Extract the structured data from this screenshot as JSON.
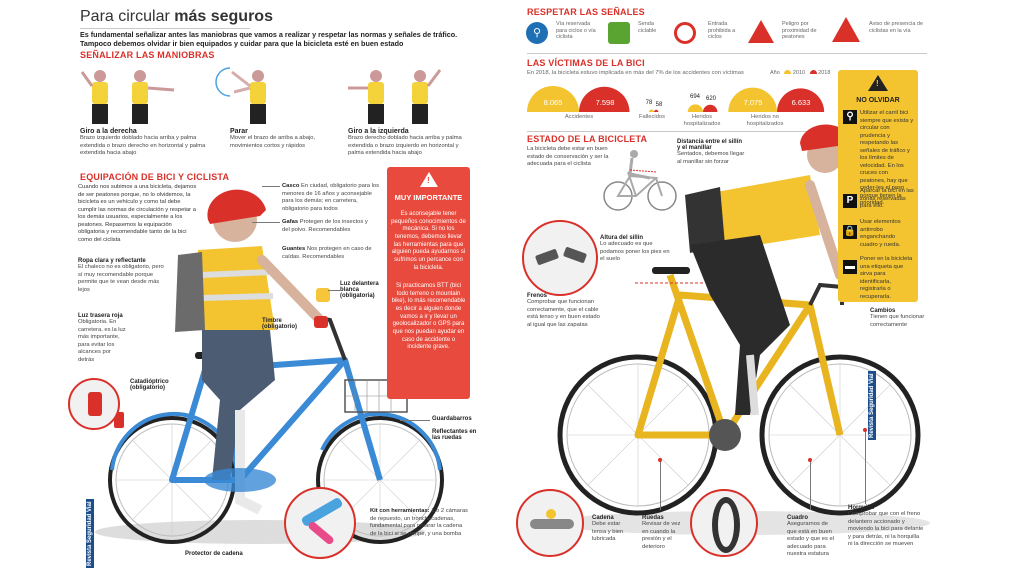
{
  "left": {
    "title_light": "Para circular",
    "title_bold": "más seguros",
    "intro": "Es fundamental señalizar antes las maniobras que vamos a realizar y respetar las normas y señales de tráfico. Tampoco debemos olvidar ir bien equipados y cuidar para que la bicicleta  esté en buen estado",
    "signal_title": "SEÑALIZAR LAS MANIOBRAS",
    "maneuvers": [
      {
        "title": "Giro a la derecha",
        "text": "Brazo izquierdo doblado hacia arriba y palma extendida o brazo derecho en horizontal y palma extendida hacia abajo"
      },
      {
        "title": "Parar",
        "text": "Mover el brazo de arriba a abajo, movimientos cortos y rápidos"
      },
      {
        "title": "Giro a la izquierda",
        "text": "Brazo derecho doblado hacia arriba y palma extendida o brazo izquierdo en horizontal y palma extendida hacia abajo"
      }
    ],
    "equip_title": "EQUIPACIÓN DE BICI Y CICLISTA",
    "equip_text": "Cuando nos subimos a una bicicleta, dejamos de ser peatones porque, no lo olvidemos, la bicicleta es un vehículo y  como tal debe cumplir las normas de circulación  y respetar a los demás usuarios, especialmente a los peatones. Repasemos la equipación obligatoria y recomendable tanto de la bici como del ciclista",
    "labels": {
      "casco_t": "Casco",
      "casco": "En ciudad, obligatorio para los menores de 16 años  y aconsejable para los demás; en carretera, obligatorio para todos",
      "gafas_t": "Gafas",
      "gafas": "Protegen de los insectos y del polvo. Recomendables",
      "guantes_t": "Guantes",
      "guantes": "Nos protegen en caso de caídas. Recomendables",
      "ropa_t": "Ropa clara y reflectante",
      "ropa": "El chaleco no es obligatorio, pero sí muy recomendable porque permite que te vean desde más lejos",
      "luzdel_t": "Luz delantera blanca (obligatoria)",
      "timbre_t": "Timbre (obligatorio)",
      "luztras_t": "Luz trasera roja",
      "luztras": "Obligatoria. En carretera, es la luz más  importante, para evitar los alcances por detrás",
      "cata_t": "Catadióptrico (obligatorio)",
      "guarda_t": "Guardabarros",
      "reflec_t": "Reflectantes en las ruedas",
      "kit_t": "Kit con herramientas:",
      "kit": " 1 o 2 cámaras de repuesto, un tronchacadenas, fundamental para reparar la cadena de la bici si se rompe, y una bomba",
      "protector_t": "Protector de cadena"
    },
    "warning": {
      "title": "MUY IMPORTANTE",
      "p1": "Es aconsejable tener pequeños conocimientos de mecánica. Si no los tenemos, debemos llevar las herramientas para que alguien pueda ayudarnos si sufrimos un percance con la bicicleta.",
      "p2": "Si practicamos BTT (bici todo terreno o mountain bike), lo más recomendable es decir  a alguien donde vamos a ir y llevar un geolocalizador o GPS para que nos puedan ayudar en caso de accidente o incidente grave."
    },
    "brand": "Revista Seguridad Vial"
  },
  "right": {
    "signs_title": "RESPETAR LAS SEÑALES",
    "signs": [
      {
        "label": "Vía reservada para ciclos o vía ciclista",
        "icon": "bike-lane-icon",
        "color": "#1f6fb5"
      },
      {
        "label": "Senda ciclable",
        "icon": "cycle-path-icon",
        "color": "#5aa532"
      },
      {
        "label": "Entrada prohibida a ciclos",
        "icon": "no-bikes-icon",
        "color": "#d9302a"
      },
      {
        "label": "Peligro por proximidad de peatones",
        "icon": "pedestrian-warning-icon",
        "color": "#d9302a"
      },
      {
        "label": "Aviso de presencia de ciclistas en la vía",
        "icon": "cyclist-warning-icon",
        "color": "#d9302a"
      }
    ],
    "victims_title": "LAS VÍCTIMAS DE LA BICI",
    "victims_sub": "En 2018, la bicicleta estuvo implicada en más del 7% de los accidentes con víctimas",
    "legend_label": "Año",
    "legend_years": [
      "2010",
      "2018"
    ],
    "legend_colors": [
      "#f4c430",
      "#d9302a"
    ],
    "stats": [
      {
        "label": "Accidentes",
        "v2010": "8.065",
        "v2018": "7.598"
      },
      {
        "label": "Fallecidos",
        "v2010": "78",
        "v2018": "58"
      },
      {
        "label": "Heridos hospitalizados",
        "v2010": "694",
        "v2018": "620"
      },
      {
        "label": "Heridos no hospitalizados",
        "v2010": "7.075",
        "v2018": "6.633"
      }
    ],
    "state_title": "ESTADO DE LA BICICLETA",
    "state_text": "La bicicleta debe estar en buen estado de conservación y ser la adecuada para el ciclista",
    "distance_t": "Distancia entre el sillín y el manillar",
    "distance": "Sentados, debemos llegar al manillar sin forzar",
    "altura_t": "Altura del sillín",
    "altura": "Lo adecuado es que podamos poner los pies en el suelo",
    "frenos_t": "Frenos",
    "frenos": "Comprobar que funcionan correctamente, que el cable está tenso y en buen estado al igual que las zapatas",
    "cambios_t": "Cambios",
    "cambios": "Tienen que funcionar correctamente",
    "cadena_t": "Cadena",
    "cadena": "Debe estar tensa y bien lubricada",
    "ruedas_t": "Ruedas",
    "ruedas": "Revisar de vez en cuando la presión y el deterioro",
    "cuadro_t": "Cuadro",
    "cuadro": "Asegurarnos de que está en buen estado y que es el adecuado para nuestra estatura",
    "horquilla_t": "Horquilla",
    "horquilla": "Comprobar que con el freno delantero accionado y moviendo la bici para delante y para detrás, ni la horquilla ni la dirección se mueven",
    "no_olvidar": {
      "title": "NO OLVIDAR",
      "items": [
        "Utilizar el carril bici siempre que exista y circular con prudencia y respetando las señales de tráfico y los límites de velocidad. En los cruces con peatones, hay que ceder-les el paso porque tienen la prioridad.",
        "Aparcar la bici en las zonas reservadas para ello.",
        "Usar elementos antirrobo enganchando cuadro y rueda.",
        "Poner en la bicicleta una etiqueta que sirva para identificarla, registrarla o recuperarla."
      ],
      "icons": [
        "bike-lane-sign-icon",
        "parking-icon",
        "padlock-icon",
        "tag-icon"
      ]
    },
    "brand": "Revista Seguridad Vial"
  }
}
